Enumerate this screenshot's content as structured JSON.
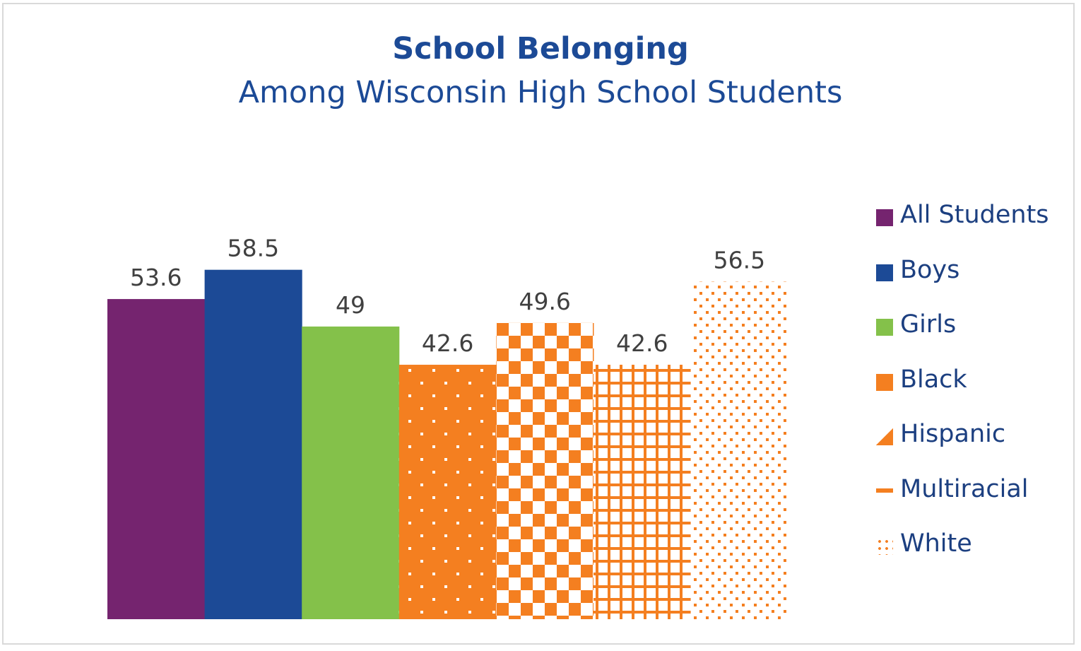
{
  "chart_data": {
    "type": "bar",
    "title": "School Belonging",
    "subtitle": "Among Wisconsin High School Students",
    "categories": [
      "All Students",
      "Boys",
      "Girls",
      "Black",
      "Hispanic",
      "Multiracial",
      "White"
    ],
    "values": [
      53.6,
      58.5,
      49,
      42.6,
      49.6,
      42.6,
      56.5
    ],
    "value_labels": [
      "53.6",
      "58.5",
      "49",
      "42.6",
      "49.6",
      "42.6",
      "56.5"
    ],
    "colors": [
      "#75246f",
      "#1c4a96",
      "#84c14a",
      "#f47f20",
      "#f47f20",
      "#f47f20",
      "#f47f20"
    ],
    "fills": [
      "solid",
      "solid",
      "solid",
      "dots",
      "checker",
      "grid",
      "fine-dots"
    ],
    "ylim": [
      0,
      60
    ],
    "grid": false,
    "legend_position": "right"
  }
}
